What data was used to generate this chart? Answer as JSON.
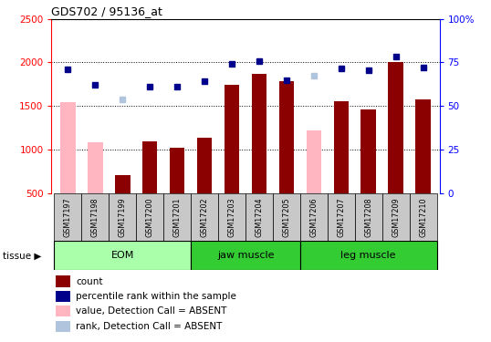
{
  "title": "GDS702 / 95136_at",
  "samples": [
    "GSM17197",
    "GSM17198",
    "GSM17199",
    "GSM17200",
    "GSM17201",
    "GSM17202",
    "GSM17203",
    "GSM17204",
    "GSM17205",
    "GSM17206",
    "GSM17207",
    "GSM17208",
    "GSM17209",
    "GSM17210"
  ],
  "bar_values": [
    1540,
    1080,
    710,
    1100,
    1020,
    1140,
    1740,
    1870,
    1790,
    1220,
    1560,
    1460,
    2000,
    1580
  ],
  "bar_absent": [
    true,
    true,
    false,
    false,
    false,
    false,
    false,
    false,
    false,
    true,
    false,
    false,
    false,
    false
  ],
  "dot_values": [
    1920,
    1740,
    1580,
    1720,
    1720,
    1790,
    1980,
    2010,
    1800,
    1850,
    1930,
    1910,
    2070,
    1940
  ],
  "dot_absent": [
    false,
    false,
    true,
    false,
    false,
    false,
    false,
    false,
    false,
    true,
    false,
    false,
    false,
    false
  ],
  "ylim_left": [
    500,
    2500
  ],
  "ylim_right": [
    0,
    100
  ],
  "yticks_left": [
    500,
    1000,
    1500,
    2000,
    2500
  ],
  "yticks_right": [
    0,
    25,
    50,
    75,
    100
  ],
  "bar_color_present": "#8B0000",
  "bar_color_absent": "#FFB6C1",
  "dot_color_present": "#00008B",
  "dot_color_absent": "#B0C4DE",
  "group_configs": [
    {
      "label": "EOM",
      "start": 0,
      "end": 4,
      "color": "#AAFFAA"
    },
    {
      "label": "jaw muscle",
      "start": 5,
      "end": 8,
      "color": "#33CC33"
    },
    {
      "label": "leg muscle",
      "start": 9,
      "end": 13,
      "color": "#33CC33"
    }
  ],
  "tissue_label": "tissue",
  "legend_items": [
    {
      "label": "count",
      "color": "#8B0000"
    },
    {
      "label": "percentile rank within the sample",
      "color": "#00008B"
    },
    {
      "label": "value, Detection Call = ABSENT",
      "color": "#FFB6C1"
    },
    {
      "label": "rank, Detection Call = ABSENT",
      "color": "#B0C4DE"
    }
  ],
  "plot_bg_color": "#ffffff",
  "tick_area_color": "#C8C8C8",
  "dotted_grid_lines": [
    1000,
    1500,
    2000
  ]
}
